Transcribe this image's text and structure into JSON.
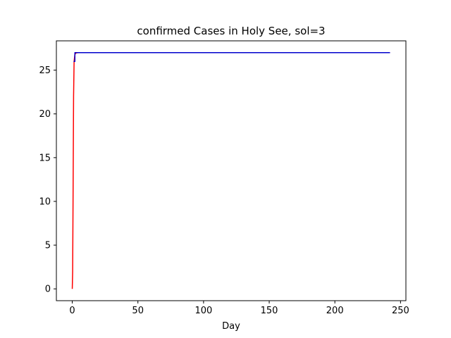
{
  "chart_data": {
    "type": "line",
    "title": "confirmed Cases in Holy See, sol=3",
    "xlabel": "Day",
    "ylabel": "",
    "xlim": [
      -12.1,
      254.1
    ],
    "ylim": [
      -1.35,
      28.35
    ],
    "xticks": [
      0,
      50,
      100,
      150,
      200,
      250
    ],
    "yticks": [
      0,
      5,
      10,
      15,
      20,
      25
    ],
    "grid": false,
    "series": [
      {
        "color": "#ff0000",
        "x": [
          0,
          0.3,
          0.6,
          1.0,
          1.4,
          2.0,
          3.0,
          5.0,
          10.0,
          50.0,
          100.0,
          150.0,
          200.0,
          242.0
        ],
        "y": [
          0.0,
          2.0,
          10.0,
          22.0,
          26.0,
          26.8,
          26.98,
          27.0,
          27.0,
          27.0,
          27.0,
          27.0,
          27.0,
          27.0
        ]
      },
      {
        "color": "#0000cd",
        "x": [
          1.0,
          2.0,
          2.0,
          3.0,
          50.0,
          100.0,
          150.0,
          200.0,
          242.0
        ],
        "y": [
          26.0,
          26.0,
          27.0,
          27.0,
          27.0,
          27.0,
          27.0,
          27.0,
          27.0
        ]
      }
    ]
  }
}
